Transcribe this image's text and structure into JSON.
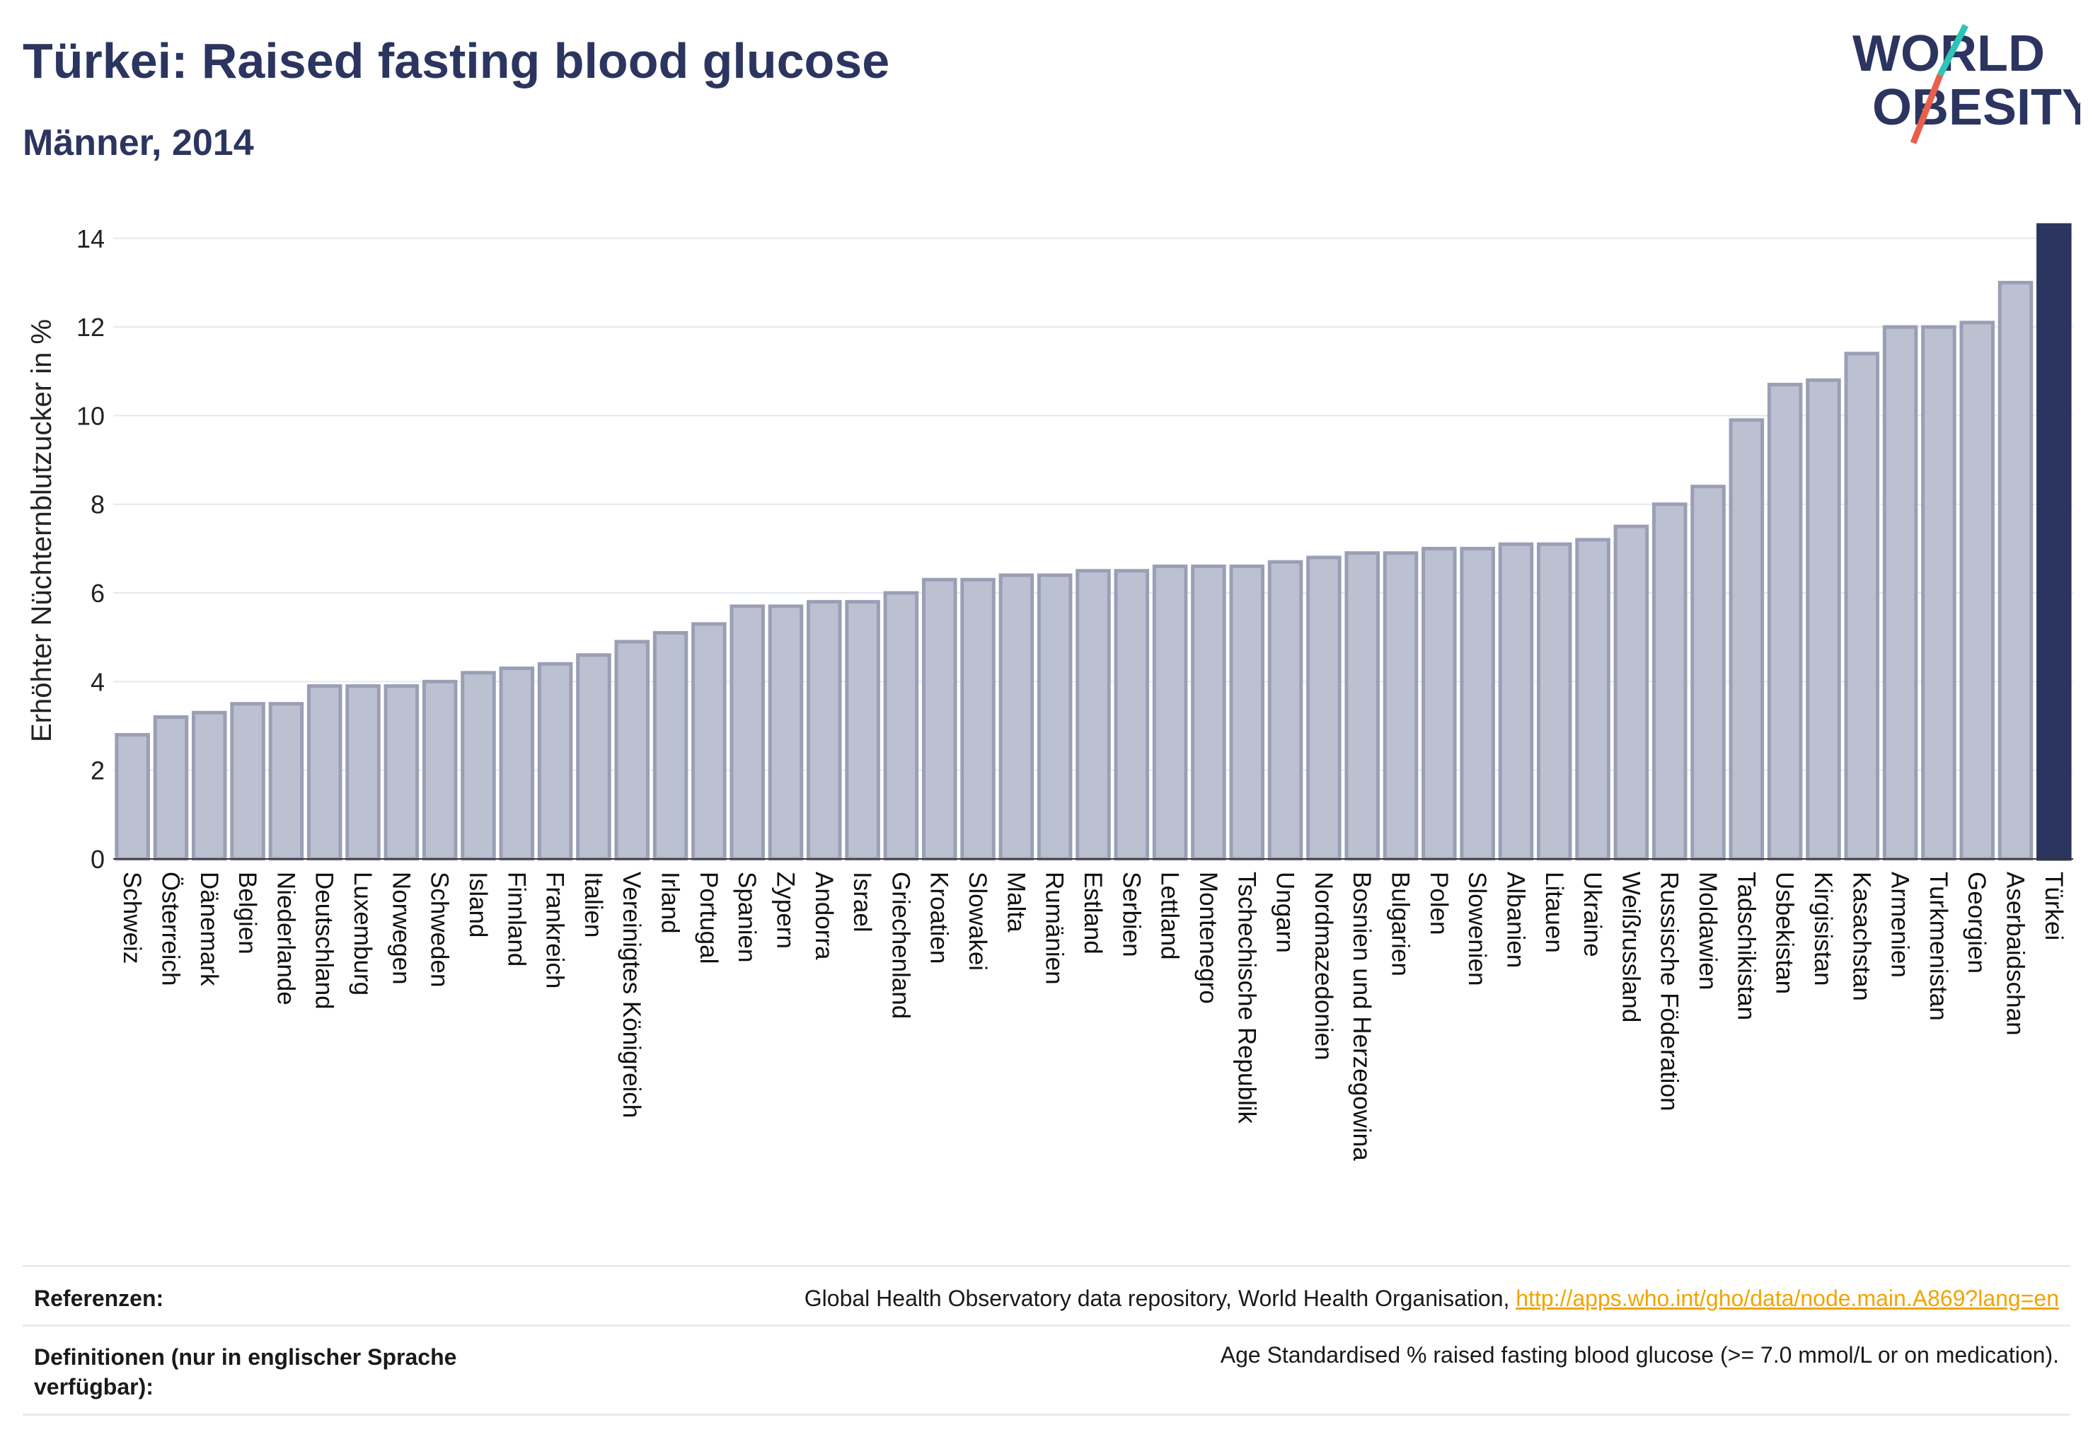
{
  "header": {
    "title": "Türkei: Raised fasting blood glucose",
    "subtitle": "Männer, 2014"
  },
  "logo": {
    "line1": "WORLD",
    "line2": "OBESITY"
  },
  "colors": {
    "title": "#2b3560",
    "bar": "#bcc1d2",
    "bar_stroke": "#9a9fb6",
    "highlight": "#2b3560",
    "link": "#f0a500"
  },
  "chart_data": {
    "type": "bar",
    "ylabel": "Erhöhter Nüchternblutzucker in %",
    "ylim": [
      0,
      14.3
    ],
    "yticks": [
      0,
      2,
      4,
      6,
      8,
      10,
      12,
      14
    ],
    "grid": true,
    "highlight": "Türkei",
    "categories": [
      "Schweiz",
      "Österreich",
      "Dänemark",
      "Belgien",
      "Niederlande",
      "Deutschland",
      "Luxemburg",
      "Norwegen",
      "Schweden",
      "Island",
      "Finnland",
      "Frankreich",
      "Italien",
      "Vereinigtes Königreich",
      "Irland",
      "Portugal",
      "Spanien",
      "Zypern",
      "Andorra",
      "Israel",
      "Griechenland",
      "Kroatien",
      "Slowakei",
      "Malta",
      "Rumänien",
      "Estland",
      "Serbien",
      "Lettland",
      "Montenegro",
      "Tschechische Republik",
      "Ungarn",
      "Nordmazedonien",
      "Bosnien und Herzegowina",
      "Bulgarien",
      "Polen",
      "Slowenien",
      "Albanien",
      "Litauen",
      "Ukraine",
      "Weißrussland",
      "Russische Föderation",
      "Moldawien",
      "Tadschikistan",
      "Usbekistan",
      "Kirgisistan",
      "Kasachstan",
      "Armenien",
      "Turkmenistan",
      "Georgien",
      "Aserbaidschan",
      "Türkei"
    ],
    "values": [
      2.8,
      3.2,
      3.3,
      3.5,
      3.5,
      3.9,
      3.9,
      3.9,
      4.0,
      4.2,
      4.3,
      4.4,
      4.6,
      4.9,
      5.1,
      5.3,
      5.7,
      5.7,
      5.8,
      5.8,
      6.0,
      6.3,
      6.3,
      6.4,
      6.4,
      6.5,
      6.5,
      6.6,
      6.6,
      6.6,
      6.7,
      6.8,
      6.9,
      6.9,
      7.0,
      7.0,
      7.1,
      7.1,
      7.2,
      7.5,
      8.0,
      8.4,
      9.9,
      10.7,
      10.8,
      11.4,
      12.0,
      12.0,
      12.1,
      13.0,
      14.3
    ]
  },
  "footer": {
    "references_label": "Referenzen:",
    "references_text": "Global Health Observatory data repository, World Health Organisation, ",
    "references_link": "http://apps.who.int/gho/data/node.main.A869?lang=en",
    "definitions_label_line1": "Definitionen (nur in englischer Sprache",
    "definitions_label_line2": "verfügbar):",
    "definitions_text": "Age Standardised % raised fasting blood glucose (>= 7.0 mmol/L or on medication)."
  }
}
